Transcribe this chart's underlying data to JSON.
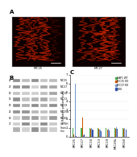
{
  "panel_a": {
    "label": "A",
    "images": [
      {
        "title": "MIC25",
        "bg_color": "#1a0000"
      },
      {
        "title": "MIC27",
        "bg_color": "#1a0000"
      }
    ]
  },
  "panel_b": {
    "label": "B",
    "bands": [
      "MIC25",
      "MIC27",
      "MIC10",
      "MIC13",
      "MIC19",
      "MIC25b",
      "MIC60",
      "GAPDH",
      "Stain-\nfree"
    ],
    "n_lanes": 5,
    "bg_color": "#e8e8e8"
  },
  "panel_c": {
    "label": "C",
    "categories": [
      "MIC25",
      "MIC27",
      "MIC10",
      "MIC13",
      "MIC19",
      "MIC25b",
      "MIC60"
    ],
    "series": {
      "HAP1 WT": [
        1.0,
        1.0,
        1.0,
        1.0,
        1.0,
        1.0,
        1.0
      ],
      "MIC25 KO": [
        0.2,
        2.2,
        0.85,
        0.85,
        0.8,
        0.9,
        0.85
      ],
      "MIC27 KO": [
        6.0,
        0.15,
        0.95,
        0.75,
        0.85,
        1.1,
        0.95
      ],
      "DKO": [
        0.1,
        0.2,
        0.75,
        0.65,
        0.7,
        0.85,
        0.75
      ]
    },
    "colors": {
      "HAP1 WT": "#4caf50",
      "MIC25 KO": "#cc5500",
      "MIC27 KO": "#7799cc",
      "DKO": "#3355aa"
    },
    "legend_labels": [
      "HAP1 WT",
      "MIC25 KO",
      "MIC27 KO",
      "DKO"
    ],
    "ylabel": "Relative protein level",
    "ylim": [
      0,
      7.0
    ]
  },
  "background_color": "#ffffff"
}
